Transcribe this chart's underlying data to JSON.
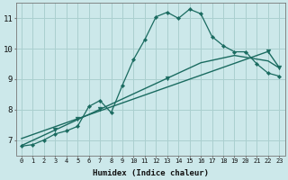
{
  "xlabel": "Humidex (Indice chaleur)",
  "bg_color": "#cce8ea",
  "grid_color": "#aacfcf",
  "line_color": "#1a6b60",
  "x_data": [
    0,
    1,
    2,
    3,
    4,
    5,
    6,
    7,
    8,
    9,
    10,
    11,
    12,
    13,
    14,
    15,
    16,
    17,
    18,
    19,
    20,
    21,
    22,
    23
  ],
  "y_main": [
    6.8,
    6.85,
    7.0,
    7.2,
    7.3,
    7.45,
    8.1,
    8.3,
    7.9,
    8.8,
    9.65,
    10.3,
    11.05,
    11.2,
    11.0,
    11.3,
    11.15,
    10.4,
    10.1,
    9.9,
    9.9,
    9.5,
    9.2,
    9.1
  ],
  "y_line1": [
    7.05,
    7.18,
    7.31,
    7.44,
    7.57,
    7.7,
    7.83,
    7.96,
    8.09,
    8.22,
    8.35,
    8.48,
    8.61,
    8.74,
    8.87,
    9.0,
    9.13,
    9.26,
    9.39,
    9.52,
    9.65,
    9.78,
    9.91,
    9.38
  ],
  "y_line2": [
    6.82,
    6.99,
    7.16,
    7.33,
    7.5,
    7.67,
    7.84,
    8.01,
    8.18,
    8.35,
    8.52,
    8.69,
    8.86,
    9.03,
    9.2,
    9.37,
    9.54,
    9.62,
    9.7,
    9.78,
    9.72,
    9.66,
    9.6,
    9.37
  ],
  "tri_down_x": [
    3,
    5,
    7,
    13,
    22
  ],
  "ylim": [
    6.5,
    11.5
  ],
  "xlim": [
    -0.5,
    23.5
  ],
  "yticks": [
    7,
    8,
    9,
    10,
    11
  ],
  "xticks": [
    0,
    1,
    2,
    3,
    4,
    5,
    6,
    7,
    8,
    9,
    10,
    11,
    12,
    13,
    14,
    15,
    16,
    17,
    18,
    19,
    20,
    21,
    22,
    23
  ]
}
